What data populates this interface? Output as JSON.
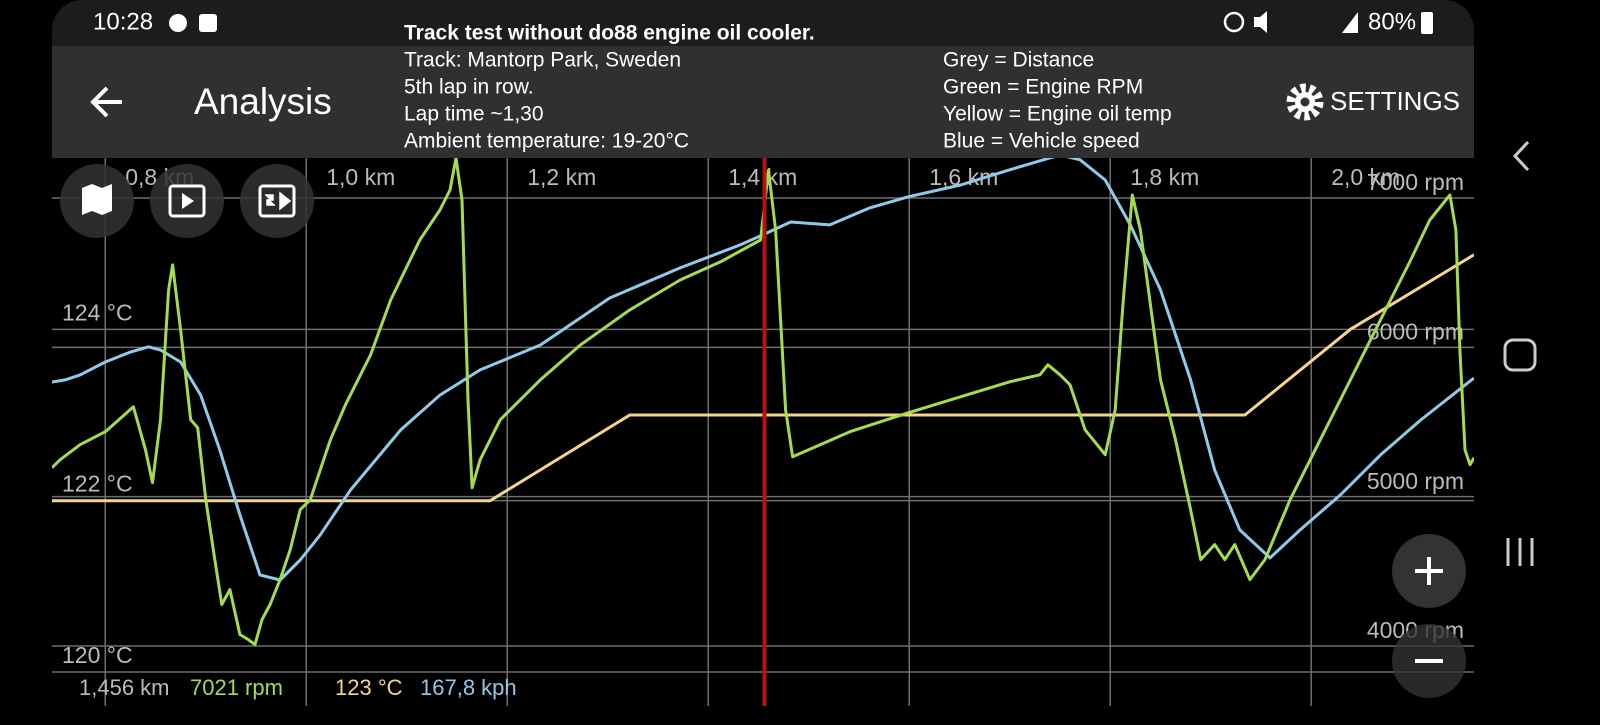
{
  "status_bar": {
    "time": "10:28",
    "battery": "80%"
  },
  "header": {
    "title": "Analysis",
    "settings": "SETTINGS"
  },
  "notes": {
    "title": "Track test without do88 engine oil cooler.",
    "lines": [
      "Track: Mantorp Park, Sweden",
      "5th lap in row.",
      "Lap time ~1,30",
      "Ambient temperature: 19-20°C"
    ],
    "legend": [
      "Grey = Distance",
      "Green = Engine RPM",
      "Yellow = Engine oil temp",
      "Blue = Vehicle speed"
    ]
  },
  "chart_data": {
    "type": "line",
    "grid": true,
    "xlim": [
      0.747,
      2.162
    ],
    "xticks": [
      {
        "value": 0.8,
        "label": "0,8 km"
      },
      {
        "value": 1.0,
        "label": "1,0 km"
      },
      {
        "value": 1.2,
        "label": "1,2 km"
      },
      {
        "value": 1.4,
        "label": "1,4 km"
      },
      {
        "value": 1.6,
        "label": "1,6 km"
      },
      {
        "value": 1.8,
        "label": "1,8 km"
      },
      {
        "value": 2.0,
        "label": "2,0 km"
      }
    ],
    "ylim": [
      120,
      126
    ],
    "yticks": [
      {
        "value": 120,
        "label": "120 °C"
      },
      {
        "value": 122,
        "label": "122 °C"
      },
      {
        "value": 124,
        "label": "124 °C"
      }
    ],
    "y2lim": [
      3826,
      7268
    ],
    "y2ticks": [
      {
        "value": 4000,
        "label": "4000 rpm"
      },
      {
        "value": 5000,
        "label": "5000 rpm"
      },
      {
        "value": 6000,
        "label": "6000 rpm"
      },
      {
        "value": 7000,
        "label": "7000 rpm"
      }
    ],
    "y3lim": [
      0,
      196
    ],
    "series": [
      {
        "color": "#f5d58a",
        "x": [
          0.747,
          1.183,
          1.322,
          1.934,
          2.039,
          2.162
        ],
        "values": [
          122,
          122,
          123,
          123,
          124,
          124.87
        ]
      },
      {
        "color": "#8fcbe8",
        "axis": "y3",
        "x": [
          0.747,
          0.76,
          0.775,
          0.8,
          0.825,
          0.843,
          0.855,
          0.875,
          0.895,
          0.914,
          0.934,
          0.954,
          0.974,
          0.994,
          1.014,
          1.044,
          1.094,
          1.133,
          1.173,
          1.233,
          1.302,
          1.372,
          1.432,
          1.452,
          1.482,
          1.521,
          1.561,
          1.599,
          1.651,
          1.7,
          1.75,
          1.77,
          1.795,
          1.82,
          1.85,
          1.88,
          1.904,
          1.929,
          1.959,
          1.989,
          2.029,
          2.069,
          2.109,
          2.162
        ],
        "values": [
          110.6,
          111.4,
          113.3,
          118.2,
          122.0,
          124.0,
          122.8,
          118.2,
          105.6,
          84.7,
          59.9,
          37.0,
          35.1,
          42.7,
          52.3,
          69.4,
          92.3,
          105.6,
          115.2,
          124.7,
          142.6,
          154.1,
          162.9,
          166.3,
          171.6,
          170.5,
          177.0,
          181.2,
          185.7,
          191.5,
          197.2,
          195.3,
          187.6,
          170.5,
          145.7,
          111.4,
          77.0,
          54.2,
          43.5,
          54.2,
          67.5,
          82.8,
          96.1,
          112.1
        ]
      },
      {
        "color": "#a5dc4e",
        "axis": "y2",
        "x": [
          0.747,
          0.755,
          0.775,
          0.8,
          0.828,
          0.84,
          0.847,
          0.855,
          0.863,
          0.867,
          0.875,
          0.885,
          0.892,
          0.9,
          0.909,
          0.916,
          0.924,
          0.934,
          0.942,
          0.949,
          0.956,
          0.964,
          0.974,
          0.984,
          0.994,
          1.004,
          1.014,
          1.024,
          1.039,
          1.064,
          1.084,
          1.113,
          1.133,
          1.143,
          1.149,
          1.155,
          1.161,
          1.165,
          1.173,
          1.193,
          1.233,
          1.273,
          1.322,
          1.372,
          1.412,
          1.452,
          1.46,
          1.467,
          1.477,
          1.484,
          1.541,
          1.599,
          1.651,
          1.7,
          1.73,
          1.738,
          1.75,
          1.76,
          1.775,
          1.795,
          1.805,
          1.813,
          1.822,
          1.83,
          1.85,
          1.865,
          1.88,
          1.89,
          1.904,
          1.914,
          1.924,
          1.939,
          1.954,
          1.979,
          1.999,
          2.019,
          2.039,
          2.069,
          2.099,
          2.118,
          2.138,
          2.144,
          2.148,
          2.153,
          2.158,
          2.162
        ],
        "values": [
          5194,
          5247,
          5348,
          5435,
          5602,
          5314,
          5094,
          5515,
          6385,
          6552,
          6117,
          5515,
          5462,
          4980,
          4579,
          4278,
          4378,
          4077,
          4044,
          4010,
          4177,
          4278,
          4445,
          4645,
          4913,
          4980,
          5181,
          5381,
          5615,
          5950,
          6318,
          6719,
          6920,
          7054,
          7268,
          6987,
          5649,
          5060,
          5247,
          5515,
          5783,
          6017,
          6251,
          6451,
          6572,
          6719,
          7187,
          6786,
          5582,
          5268,
          5435,
          5562,
          5669,
          5769,
          5816,
          5883,
          5816,
          5749,
          5448,
          5281,
          5582,
          6318,
          7020,
          6786,
          5783,
          5381,
          4913,
          4579,
          4679,
          4579,
          4679,
          4445,
          4579,
          4980,
          5247,
          5515,
          5783,
          6184,
          6585,
          6853,
          7020,
          6786,
          5983,
          5314,
          5214,
          5261
        ]
      }
    ],
    "readouts": {
      "distance": {
        "value": 1.456,
        "label": "1,456 km"
      },
      "rpm": "7021 rpm",
      "temperature": "123 °C",
      "speed": "167,8 kph"
    }
  }
}
